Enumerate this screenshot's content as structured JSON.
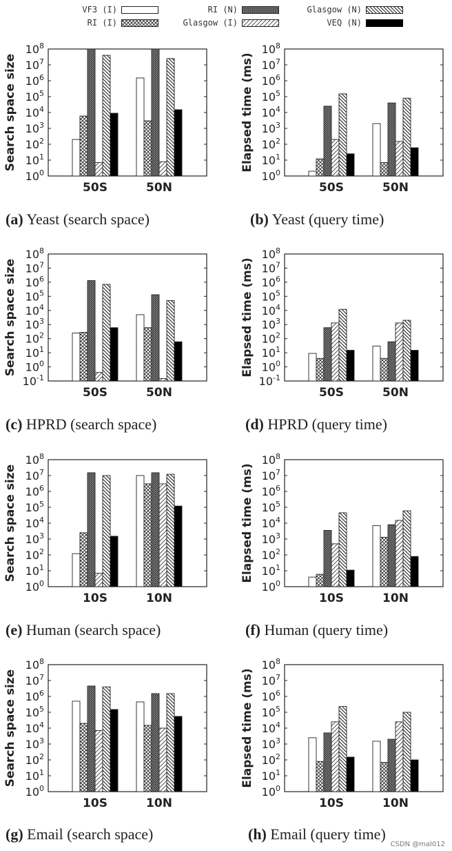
{
  "series_style": [
    {
      "name": "VF3 (I)",
      "pattern": "solid-white"
    },
    {
      "name": "RI (I)",
      "pattern": "crosshatch"
    },
    {
      "name": "RI (N)",
      "pattern": "dense-dots"
    },
    {
      "name": "Glasgow (I)",
      "pattern": "diag-up"
    },
    {
      "name": "Glasgow (N)",
      "pattern": "diag-down"
    },
    {
      "name": "VEQ (N)",
      "pattern": "solid-black"
    }
  ],
  "legend": {
    "entries": [
      "VF3 (I)",
      "RI (N)",
      "Glasgow (N)",
      "RI (I)",
      "Glasgow (I)",
      "VEQ (N)"
    ]
  },
  "watermark": "CSDN @mal012",
  "chart_data": [
    {
      "type": "bar",
      "panel": "a",
      "caption_label": "(a)",
      "caption_text": "Yeast (search space)",
      "ylabel": "Search space size",
      "yscale": "log",
      "ylim_exp": [
        0,
        8
      ],
      "categories": [
        "50S",
        "50N"
      ],
      "series": [
        {
          "name": "VF3 (I)",
          "values": [
            200,
            1500000
          ]
        },
        {
          "name": "RI (I)",
          "values": [
            6000,
            3000
          ]
        },
        {
          "name": "RI (N)",
          "values": [
            100000000,
            100000000
          ]
        },
        {
          "name": "Glasgow (I)",
          "values": [
            7,
            8
          ]
        },
        {
          "name": "Glasgow (N)",
          "values": [
            40000000,
            25000000
          ]
        },
        {
          "name": "VEQ (N)",
          "values": [
            9000,
            15000
          ]
        }
      ]
    },
    {
      "type": "bar",
      "panel": "b",
      "caption_label": "(b)",
      "caption_text": "Yeast (query time)",
      "ylabel": "Elapsed time (ms)",
      "yscale": "log",
      "ylim_exp": [
        0,
        8
      ],
      "categories": [
        "50S",
        "50N"
      ],
      "series": [
        {
          "name": "VF3 (I)",
          "values": [
            2,
            2000
          ]
        },
        {
          "name": "RI (I)",
          "values": [
            12,
            7
          ]
        },
        {
          "name": "RI (N)",
          "values": [
            25000,
            40000
          ]
        },
        {
          "name": "Glasgow (I)",
          "values": [
            200,
            150
          ]
        },
        {
          "name": "Glasgow (N)",
          "values": [
            150000,
            80000
          ]
        },
        {
          "name": "VEQ (N)",
          "values": [
            25,
            60
          ]
        }
      ]
    },
    {
      "type": "bar",
      "panel": "c",
      "caption_label": "(c)",
      "caption_text": "HPRD (search space)",
      "ylabel": "Search space size",
      "yscale": "log",
      "ylim_exp": [
        -1,
        8
      ],
      "categories": [
        "50S",
        "50N"
      ],
      "series": [
        {
          "name": "VF3 (I)",
          "values": [
            250,
            5000
          ]
        },
        {
          "name": "RI (I)",
          "values": [
            280,
            600
          ]
        },
        {
          "name": "RI (N)",
          "values": [
            1300000,
            130000
          ]
        },
        {
          "name": "Glasgow (I)",
          "values": [
            0.4,
            0.15
          ]
        },
        {
          "name": "Glasgow (N)",
          "values": [
            700000,
            50000
          ]
        },
        {
          "name": "VEQ (N)",
          "values": [
            600,
            60
          ]
        }
      ]
    },
    {
      "type": "bar",
      "panel": "d",
      "caption_label": "(d)",
      "caption_text": "HPRD (query time)",
      "ylabel": "Elapsed time (ms)",
      "yscale": "log",
      "ylim_exp": [
        -1,
        8
      ],
      "categories": [
        "50S",
        "50N"
      ],
      "series": [
        {
          "name": "VF3 (I)",
          "values": [
            9,
            30
          ]
        },
        {
          "name": "RI (I)",
          "values": [
            4,
            4
          ]
        },
        {
          "name": "RI (N)",
          "values": [
            600,
            60
          ]
        },
        {
          "name": "Glasgow (I)",
          "values": [
            1300,
            1300
          ]
        },
        {
          "name": "Glasgow (N)",
          "values": [
            12000,
            2000
          ]
        },
        {
          "name": "VEQ (N)",
          "values": [
            15,
            15
          ]
        }
      ]
    },
    {
      "type": "bar",
      "panel": "e",
      "caption_label": "(e)",
      "caption_text": "Human (search space)",
      "ylabel": "Search space size",
      "yscale": "log",
      "ylim_exp": [
        0,
        8
      ],
      "categories": [
        "10S",
        "10N"
      ],
      "series": [
        {
          "name": "VF3 (I)",
          "values": [
            120,
            10000000
          ]
        },
        {
          "name": "RI (I)",
          "values": [
            2500,
            3000000
          ]
        },
        {
          "name": "RI (N)",
          "values": [
            15000000,
            15000000
          ]
        },
        {
          "name": "Glasgow (I)",
          "values": [
            7,
            3000000
          ]
        },
        {
          "name": "Glasgow (N)",
          "values": [
            10000000,
            12000000
          ]
        },
        {
          "name": "VEQ (N)",
          "values": [
            1500,
            120000
          ]
        }
      ]
    },
    {
      "type": "bar",
      "panel": "f",
      "caption_label": "(f)",
      "caption_text": "Human (query time)",
      "ylabel": "Elapsed time (ms)",
      "yscale": "log",
      "ylim_exp": [
        0,
        8
      ],
      "categories": [
        "10S",
        "10N"
      ],
      "series": [
        {
          "name": "VF3 (I)",
          "values": [
            4,
            7000
          ]
        },
        {
          "name": "RI (I)",
          "values": [
            6,
            1300
          ]
        },
        {
          "name": "RI (N)",
          "values": [
            3500,
            8000
          ]
        },
        {
          "name": "Glasgow (I)",
          "values": [
            500,
            15000
          ]
        },
        {
          "name": "Glasgow (N)",
          "values": [
            45000,
            60000
          ]
        },
        {
          "name": "VEQ (N)",
          "values": [
            11,
            80
          ]
        }
      ]
    },
    {
      "type": "bar",
      "panel": "g",
      "caption_label": "(g)",
      "caption_text": "Email (search space)",
      "ylabel": "Search space size",
      "yscale": "log",
      "ylim_exp": [
        0,
        8
      ],
      "categories": [
        "10S",
        "10N"
      ],
      "series": [
        {
          "name": "VF3 (I)",
          "values": [
            500000,
            450000
          ]
        },
        {
          "name": "RI (I)",
          "values": [
            20000,
            15000
          ]
        },
        {
          "name": "RI (N)",
          "values": [
            4500000,
            1500000
          ]
        },
        {
          "name": "Glasgow (I)",
          "values": [
            7000,
            10000
          ]
        },
        {
          "name": "Glasgow (N)",
          "values": [
            4000000,
            1500000
          ]
        },
        {
          "name": "VEQ (N)",
          "values": [
            150000,
            55000
          ]
        }
      ]
    },
    {
      "type": "bar",
      "panel": "h",
      "caption_label": "(h)",
      "caption_text": "Email (query time)",
      "ylabel": "Elapsed time (ms)",
      "yscale": "log",
      "ylim_exp": [
        0,
        8
      ],
      "categories": [
        "10S",
        "10N"
      ],
      "series": [
        {
          "name": "VF3 (I)",
          "values": [
            2500,
            1500
          ]
        },
        {
          "name": "RI (I)",
          "values": [
            80,
            70
          ]
        },
        {
          "name": "RI (N)",
          "values": [
            5000,
            2000
          ]
        },
        {
          "name": "Glasgow (I)",
          "values": [
            25000,
            25000
          ]
        },
        {
          "name": "Glasgow (N)",
          "values": [
            230000,
            100000
          ]
        },
        {
          "name": "VEQ (N)",
          "values": [
            150,
            100
          ]
        }
      ]
    }
  ]
}
